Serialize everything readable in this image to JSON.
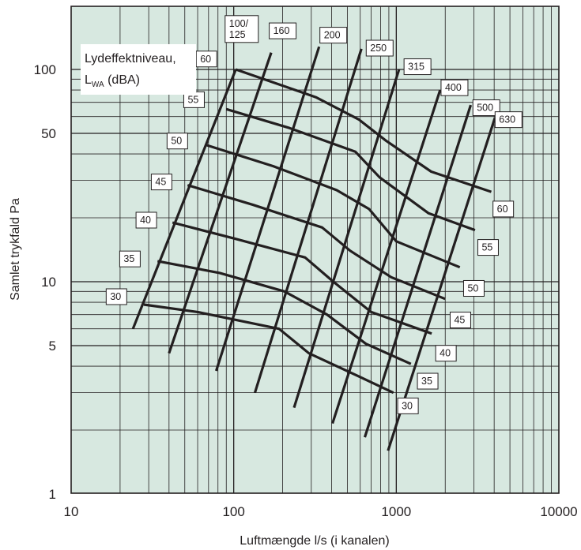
{
  "chart_data": {
    "type": "line",
    "xlabel": "Luftmængde l/s (i kanalen)",
    "ylabel": "Samlet trykfald Pa",
    "xscale": "log",
    "yscale": "log",
    "xlim": [
      10,
      10000
    ],
    "ylim": [
      1,
      250
    ],
    "x_ticks": [
      "10",
      "100",
      "1000",
      "10000"
    ],
    "y_ticks": [
      "1",
      "5",
      "10",
      "50",
      "100"
    ],
    "x_tick_values": [
      10,
      100,
      1000,
      10000
    ],
    "y_tick_values": [
      1,
      5,
      10,
      50,
      100
    ],
    "grid": true,
    "background": "#d7e8e0",
    "line_color": "#231f20",
    "legend": {
      "line1": "Lydeffektniveau,",
      "line2_main": "L",
      "line2_sub": "WA",
      "line2_rest": " (dBA)",
      "placement": "top-left"
    },
    "duct_series": [
      {
        "name": "100/\n125",
        "label_lines": [
          "100/",
          "125"
        ],
        "points": [
          [
            24,
            6
          ],
          [
            103,
            100
          ]
        ],
        "label_at": [
          112,
          155
        ]
      },
      {
        "name": "160",
        "points": [
          [
            40,
            4.6
          ],
          [
            170,
            120
          ]
        ],
        "label_at": [
          200,
          152
        ]
      },
      {
        "name": "200",
        "points": [
          [
            78,
            3.8
          ],
          [
            335,
            128
          ]
        ],
        "label_at": [
          410,
          145
        ]
      },
      {
        "name": "250",
        "points": [
          [
            135,
            3
          ],
          [
            610,
            125
          ]
        ],
        "label_at": [
          790,
          126
        ]
      },
      {
        "name": "315",
        "points": [
          [
            235,
            2.55
          ],
          [
            1040,
            100
          ]
        ],
        "label_at": [
          1350,
          103
        ]
      },
      {
        "name": "400",
        "points": [
          [
            405,
            2.15
          ],
          [
            1860,
            80
          ]
        ],
        "label_at": [
          2280,
          82
        ]
      },
      {
        "name": "500",
        "points": [
          [
            640,
            1.85
          ],
          [
            2870,
            68
          ]
        ],
        "label_at": [
          3580,
          66
        ]
      },
      {
        "name": "630",
        "points": [
          [
            890,
            1.6
          ],
          [
            4040,
            59
          ]
        ],
        "label_at": [
          4900,
          58
        ]
      }
    ],
    "sound_series": [
      {
        "name": "60",
        "points": [
          [
            103,
            100
          ],
          [
            320,
            74
          ],
          [
            590,
            58
          ],
          [
            870,
            46
          ],
          [
            1640,
            33
          ],
          [
            3840,
            26.5
          ]
        ],
        "label_at": [
          4550,
          22
        ]
      },
      {
        "name": "55",
        "points": [
          [
            90,
            65
          ],
          [
            220,
            53
          ],
          [
            560,
            41
          ],
          [
            790,
            31
          ],
          [
            1580,
            21
          ],
          [
            3050,
            17.5
          ]
        ],
        "label_at": [
          3670,
          14.5
        ]
      },
      {
        "name": "50",
        "points": [
          [
            68,
            44
          ],
          [
            175,
            35
          ],
          [
            430,
            27
          ],
          [
            680,
            22
          ],
          [
            1000,
            15.5
          ],
          [
            2460,
            11.7
          ]
        ],
        "label_at": [
          3000,
          9.3
        ]
      },
      {
        "name": "45",
        "points": [
          [
            52,
            28.5
          ],
          [
            132,
            23
          ],
          [
            350,
            18
          ],
          [
            520,
            14
          ],
          [
            930,
            10.5
          ],
          [
            2000,
            8.3
          ]
        ],
        "label_at": [
          2480,
          6.6
        ]
      },
      {
        "name": "40",
        "points": [
          [
            42,
            19
          ],
          [
            100,
            16
          ],
          [
            275,
            13
          ],
          [
            410,
            10
          ],
          [
            700,
            7.2
          ],
          [
            1650,
            5.7
          ]
        ],
        "label_at": [
          2020,
          4.6
        ]
      },
      {
        "name": "35",
        "points": [
          [
            34,
            12.5
          ],
          [
            82,
            11
          ],
          [
            205,
            9
          ],
          [
            375,
            7
          ],
          [
            650,
            5.1
          ],
          [
            1230,
            4.1
          ]
        ],
        "label_at": [
          1560,
          3.4
        ]
      },
      {
        "name": "30",
        "points": [
          [
            28,
            7.8
          ],
          [
            60,
            7.2
          ],
          [
            190,
            6
          ],
          [
            290,
            4.6
          ],
          [
            580,
            3.6
          ],
          [
            960,
            3
          ]
        ],
        "label_at": [
          1180,
          2.6
        ]
      }
    ],
    "sound_label_left": [
      {
        "name": "60",
        "label_at": [
          68,
          112
        ]
      },
      {
        "name": "55",
        "label_at": [
          57,
          72
        ]
      },
      {
        "name": "50",
        "label_at": [
          45,
          46
        ]
      },
      {
        "name": "45",
        "label_at": [
          36,
          29.5
        ]
      },
      {
        "name": "40",
        "label_at": [
          29,
          19.5
        ]
      },
      {
        "name": "35",
        "label_at": [
          23,
          12.8
        ]
      },
      {
        "name": "30",
        "label_at": [
          19,
          8.5
        ]
      }
    ]
  }
}
